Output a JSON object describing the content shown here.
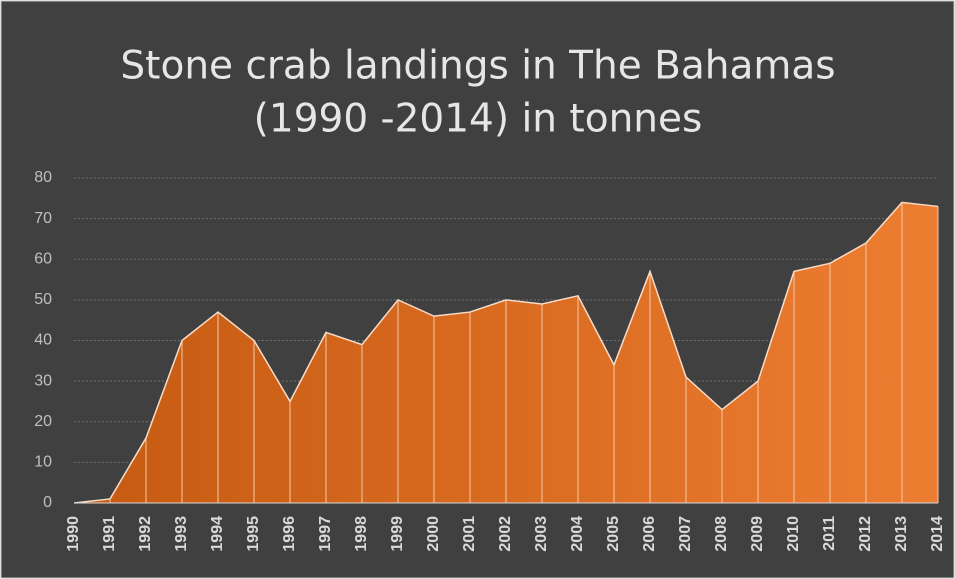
{
  "chart_data": {
    "type": "area",
    "title": [
      "Stone crab landings in The Bahamas",
      "(1990 -2014) in tonnes"
    ],
    "categories": [
      "1990",
      "1991",
      "1992",
      "1993",
      "1994",
      "1995",
      "1996",
      "1997",
      "1998",
      "1999",
      "2000",
      "2001",
      "2002",
      "2003",
      "2004",
      "2005",
      "2006",
      "2007",
      "2008",
      "2009",
      "2010",
      "2011",
      "2012",
      "2013",
      "2014"
    ],
    "values": [
      0,
      1,
      16,
      40,
      47,
      40,
      25,
      42,
      39,
      50,
      46,
      47,
      50,
      49,
      51,
      34,
      57,
      31,
      23,
      30,
      57,
      59,
      64,
      74,
      73
    ],
    "color": [
      "#c55a11",
      "#ed7d31"
    ],
    "ylim": [
      0,
      80
    ],
    "yticks": [
      0,
      10,
      20,
      30,
      40,
      50,
      60,
      70,
      80
    ],
    "grid": true
  }
}
